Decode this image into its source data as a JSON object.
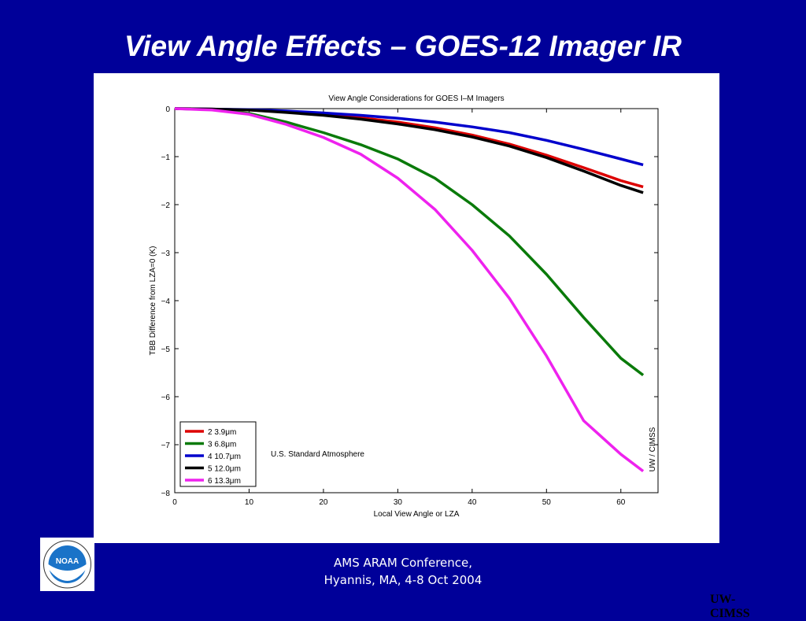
{
  "slide": {
    "title": "View Angle Effects – GOES-12 Imager IR",
    "credit": "UW-CIMSS",
    "footer_line1": "AMS ARAM Conference,",
    "footer_line2": "Hyannis, MA, 4-8 Oct 2004",
    "logo_text": "NOAA"
  },
  "colors": {
    "background": "#000099",
    "panel": "#ffffff",
    "logo_blue": "#1a73c8"
  },
  "chart_data": {
    "type": "line",
    "title": "View Angle Considerations for GOES I–M Imagers",
    "xlabel": "Local View Angle or LZA",
    "ylabel": "TBB Difference from LZA=0 (K)",
    "xlim": [
      0,
      65
    ],
    "ylim": [
      -8,
      0
    ],
    "xticks": [
      0,
      10,
      20,
      30,
      40,
      50,
      60
    ],
    "yticks": [
      0,
      -1,
      -2,
      -3,
      -4,
      -5,
      -6,
      -7,
      -8
    ],
    "grid": false,
    "legend_position": "bottom-left",
    "annotation": "U.S. Standard Atmosphere",
    "side_annotation": "UW / CIMSS",
    "x": [
      0,
      5,
      10,
      15,
      20,
      25,
      30,
      35,
      40,
      45,
      50,
      55,
      60,
      63
    ],
    "series": [
      {
        "name": "2  3.9μm",
        "color": "#dd0000",
        "values": [
          0,
          -0.01,
          -0.03,
          -0.07,
          -0.12,
          -0.19,
          -0.28,
          -0.4,
          -0.55,
          -0.74,
          -0.97,
          -1.23,
          -1.5,
          -1.63
        ]
      },
      {
        "name": "3  6.8μm",
        "color": "#0a7a0a",
        "values": [
          0,
          -0.02,
          -0.1,
          -0.28,
          -0.5,
          -0.75,
          -1.05,
          -1.45,
          -2.0,
          -2.65,
          -3.45,
          -4.35,
          -5.2,
          -5.55
        ]
      },
      {
        "name": "4 10.7μm",
        "color": "#0000cc",
        "values": [
          0,
          -0.01,
          -0.02,
          -0.05,
          -0.09,
          -0.14,
          -0.2,
          -0.28,
          -0.38,
          -0.5,
          -0.66,
          -0.85,
          -1.05,
          -1.17
        ]
      },
      {
        "name": "5 12.0μm",
        "color": "#000000",
        "values": [
          0,
          -0.01,
          -0.03,
          -0.08,
          -0.14,
          -0.22,
          -0.32,
          -0.44,
          -0.59,
          -0.78,
          -1.02,
          -1.3,
          -1.6,
          -1.75
        ]
      },
      {
        "name": "6 13.3μm",
        "color": "#ee22ee",
        "values": [
          0,
          -0.03,
          -0.12,
          -0.33,
          -0.6,
          -0.95,
          -1.45,
          -2.1,
          -2.95,
          -3.95,
          -5.15,
          -6.5,
          -7.2,
          -7.55
        ]
      }
    ]
  }
}
